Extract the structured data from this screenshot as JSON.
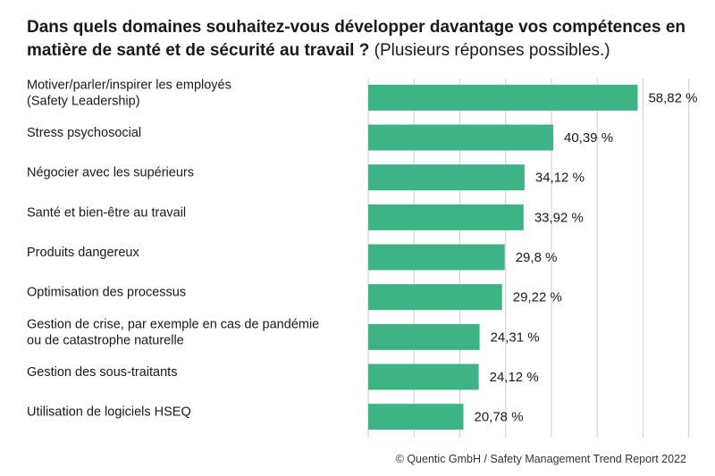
{
  "title_bold": "Dans quels domaines souhaitez-vous développer davantage vos compétences en matière de santé et de sécurité au travail ?",
  "title_note": "(Plusieurs réponses possibles.)",
  "footer": "© Quentic GmbH / Safety Management Trend Report 2022",
  "bar_color": "#3db386",
  "grid_color": "#cfcfcf",
  "chart_data": {
    "type": "bar",
    "orientation": "horizontal",
    "categories": [
      "Motiver/parler/inspirer les employés\n(Safety Leadership)",
      "Stress psychosocial",
      "Négocier avec les supérieurs",
      "Santé et bien-être au travail",
      "Produits dangereux",
      "Optimisation des processus",
      "Gestion de crise, par exemple en cas de pandémie\nou de catastrophe naturelle",
      "Gestion des sous-traitants",
      "Utilisation de logiciels HSEQ"
    ],
    "values": [
      58.82,
      40.39,
      34.12,
      33.92,
      29.8,
      29.22,
      24.31,
      24.12,
      20.78
    ],
    "value_labels": [
      "58,82 %",
      "40,39 %",
      "34,12 %",
      "33,92 %",
      "29,8 %",
      "29,22 %",
      "24,31 %",
      "24,12 %",
      "20,78 %"
    ],
    "xlim": [
      0,
      70
    ],
    "grid": true
  }
}
